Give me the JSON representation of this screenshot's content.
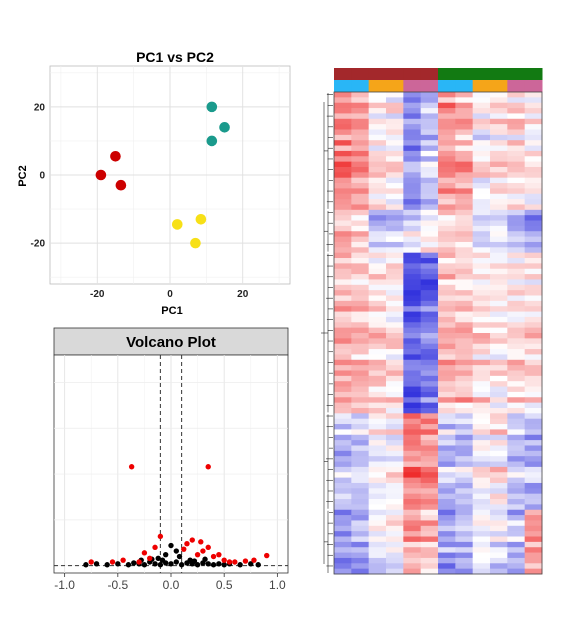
{
  "chart_data": [
    {
      "type": "scatter",
      "title": "PC1 vs PC2",
      "xlabel": "PC1",
      "ylabel": "PC2",
      "xlim": [
        -33,
        33
      ],
      "ylim": [
        -32,
        32
      ],
      "xticks": [
        -20,
        0,
        20
      ],
      "yticks": [
        20,
        0,
        -20
      ],
      "grid": true,
      "series": [
        {
          "color": "#cc0000",
          "points": [
            [
              -19,
              0
            ],
            [
              -15,
              5.5
            ],
            [
              -13.5,
              -3
            ]
          ]
        },
        {
          "color": "#1a9a8c",
          "points": [
            [
              11.5,
              20
            ],
            [
              15,
              14
            ],
            [
              11.5,
              10
            ]
          ]
        },
        {
          "color": "#f7e017",
          "points": [
            [
              2,
              -14.5
            ],
            [
              8.5,
              -13
            ],
            [
              7,
              -20
            ]
          ]
        }
      ]
    },
    {
      "type": "scatter",
      "title": "Volcano Plot",
      "xlim": [
        -1.1,
        1.1
      ],
      "ylim": [
        -0.4,
        11.5
      ],
      "xticks": [
        -1.0,
        -0.5,
        0.0,
        0.5,
        1.0
      ],
      "xticklabels": [
        "-1.0",
        "-0.5",
        "0.0",
        "0.5",
        "1.0"
      ],
      "vlines": [
        -0.1,
        0.1
      ],
      "hline": 0,
      "grid": true,
      "significant_color": "#ee0000",
      "background_color": "#000000",
      "significant_points": [
        [
          -0.37,
          5.4
        ],
        [
          0.35,
          5.4
        ],
        [
          0.9,
          0.55
        ],
        [
          -0.75,
          0.2
        ],
        [
          0.2,
          1.4
        ],
        [
          0.15,
          1.2
        ],
        [
          -0.15,
          1.0
        ],
        [
          -0.2,
          0.4
        ],
        [
          0.3,
          0.8
        ],
        [
          0.4,
          0.5
        ],
        [
          0.25,
          0.6
        ],
        [
          0.35,
          1.0
        ],
        [
          -0.1,
          1.6
        ],
        [
          0.5,
          0.3
        ],
        [
          -0.45,
          0.3
        ],
        [
          0.55,
          0.2
        ],
        [
          0.78,
          0.3
        ],
        [
          -0.25,
          0.7
        ],
        [
          0.12,
          0.9
        ],
        [
          0.28,
          1.3
        ],
        [
          -0.3,
          0.2
        ],
        [
          0.45,
          0.6
        ],
        [
          -0.55,
          0.2
        ],
        [
          0.6,
          0.2
        ],
        [
          0.7,
          0.25
        ]
      ],
      "background_points": [
        [
          -0.8,
          0.05
        ],
        [
          -0.7,
          0.1
        ],
        [
          -0.6,
          0.05
        ],
        [
          -0.5,
          0.1
        ],
        [
          -0.4,
          0.05
        ],
        [
          -0.35,
          0.15
        ],
        [
          -0.3,
          0.1
        ],
        [
          -0.25,
          0.05
        ],
        [
          -0.2,
          0.2
        ],
        [
          -0.15,
          0.1
        ],
        [
          -0.1,
          0.05
        ],
        [
          -0.05,
          0.15
        ],
        [
          0.0,
          0.1
        ],
        [
          0.05,
          0.2
        ],
        [
          0.1,
          0.05
        ],
        [
          0.15,
          0.15
        ],
        [
          0.2,
          0.1
        ],
        [
          0.25,
          0.05
        ],
        [
          0.3,
          0.15
        ],
        [
          0.35,
          0.1
        ],
        [
          0.4,
          0.05
        ],
        [
          0.45,
          0.1
        ],
        [
          0.5,
          0.05
        ],
        [
          0.55,
          0.1
        ],
        [
          0.65,
          0.05
        ],
        [
          0.75,
          0.1
        ],
        [
          0.82,
          0.05
        ],
        [
          -0.05,
          0.6
        ],
        [
          0.05,
          0.8
        ],
        [
          0.0,
          1.1
        ],
        [
          -0.12,
          0.4
        ],
        [
          0.08,
          0.5
        ],
        [
          -0.08,
          0.3
        ],
        [
          0.18,
          0.3
        ],
        [
          -0.18,
          0.35
        ],
        [
          0.22,
          0.25
        ],
        [
          -0.28,
          0.3
        ],
        [
          0.32,
          0.35
        ]
      ]
    },
    {
      "type": "heatmap",
      "rows": 90,
      "columns": 12,
      "top_annotation": [
        {
          "colors": [
            "#a3282b",
            "#a3282b",
            "#a3282b",
            "#a3282b",
            "#a3282b",
            "#a3282b",
            "#127a12",
            "#127a12",
            "#127a12",
            "#127a12",
            "#127a12",
            "#127a12"
          ]
        },
        {
          "colors": [
            "#29b6f6",
            "#29b6f6",
            "#f5a519",
            "#f5a519",
            "#cc6699",
            "#cc6699",
            "#29b6f6",
            "#29b6f6",
            "#f5a519",
            "#f5a519",
            "#cc6699",
            "#cc6699"
          ]
        }
      ],
      "color_scale": {
        "low": "#3333dd",
        "mid": "#ffffff",
        "high": "#ee2222",
        "range": [
          -1,
          1
        ]
      },
      "row_clusters": [
        {
          "rows": 22,
          "values": [
            0.55,
            0.45,
            0.1,
            0.05,
            -0.55,
            -0.3,
            0.45,
            0.35,
            0.0,
            0.1,
            0.15,
            0.05
          ]
        },
        {
          "rows": 8,
          "values": [
            0.25,
            0.2,
            -0.35,
            -0.25,
            -0.1,
            0.05,
            0.2,
            0.15,
            -0.25,
            -0.15,
            -0.35,
            -0.45
          ]
        },
        {
          "rows": 30,
          "values": [
            0.35,
            0.3,
            0.2,
            0.15,
            -0.8,
            -0.7,
            0.35,
            0.3,
            0.15,
            0.1,
            0.2,
            0.15
          ]
        },
        {
          "rows": 18,
          "values": [
            -0.3,
            -0.25,
            0.0,
            0.05,
            0.65,
            0.55,
            -0.25,
            -0.2,
            0.05,
            0.1,
            -0.25,
            -0.3
          ]
        },
        {
          "rows": 12,
          "values": [
            -0.45,
            -0.4,
            -0.05,
            0.05,
            0.45,
            0.35,
            -0.45,
            -0.35,
            -0.05,
            -0.1,
            -0.3,
            0.5
          ]
        }
      ]
    }
  ]
}
